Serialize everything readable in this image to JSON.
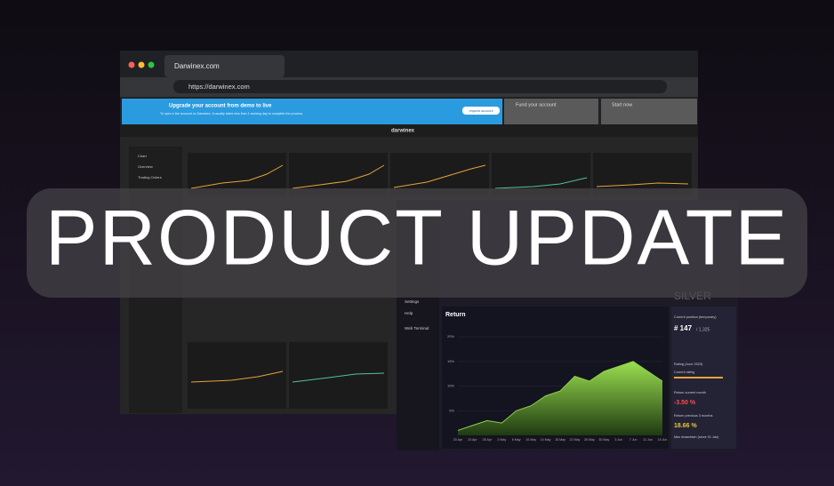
{
  "browser": {
    "tab": "Darwinex.com",
    "url": "https://darwinex.com"
  },
  "banner": {
    "title": "Upgrade your account from demo to live",
    "subtitle": "To open a live account on Darwinex, it usually takes less than 1 working day to complete the process.",
    "button": "request account",
    "step2": "Fund your account",
    "step3": "Start now"
  },
  "app": {
    "brand": "darwinex",
    "sidebar": [
      "Chart",
      "Overview",
      "Trading Orders"
    ]
  },
  "headline": "PRODUCT UPDATE",
  "panel": {
    "menu": [
      "Settings",
      "Help",
      "Web Terminal"
    ],
    "title": "Return",
    "chart": {
      "type": "area",
      "color": "#8fd14f",
      "x": [
        "20 Apr",
        "24 Apr",
        "28 Apr",
        "2 May",
        "6 May",
        "10 May",
        "14 May",
        "18 May",
        "22 May",
        "26 May",
        "30 May",
        "3 Jun",
        "7 Jun",
        "11 Jun",
        "15 Jun"
      ],
      "values": [
        1,
        2,
        3,
        2.5,
        5,
        6,
        8,
        9,
        12,
        11,
        13,
        14,
        15,
        13,
        11
      ],
      "ylim": [
        0,
        22
      ],
      "yticks": [
        {
          "value": 5,
          "label": "5%"
        },
        {
          "value": 10,
          "label": "10%"
        },
        {
          "value": 15,
          "label": "15%"
        },
        {
          "value": 20,
          "label": "20%"
        }
      ]
    },
    "stats": {
      "position_label": "Current position (temporary)",
      "rank": "# 147",
      "total": "/ 1,325",
      "rating_label": "Rating (June 2023)",
      "current_rating": "Current rating",
      "ret_month_label": "Return current month",
      "ret_month": "-3.50 %",
      "ret_3m_label": "Return previous 3 months",
      "ret_3m": "18.66 %",
      "dd_label": "Max drawdown (since 01 Jan)",
      "level": "SILVER"
    }
  }
}
